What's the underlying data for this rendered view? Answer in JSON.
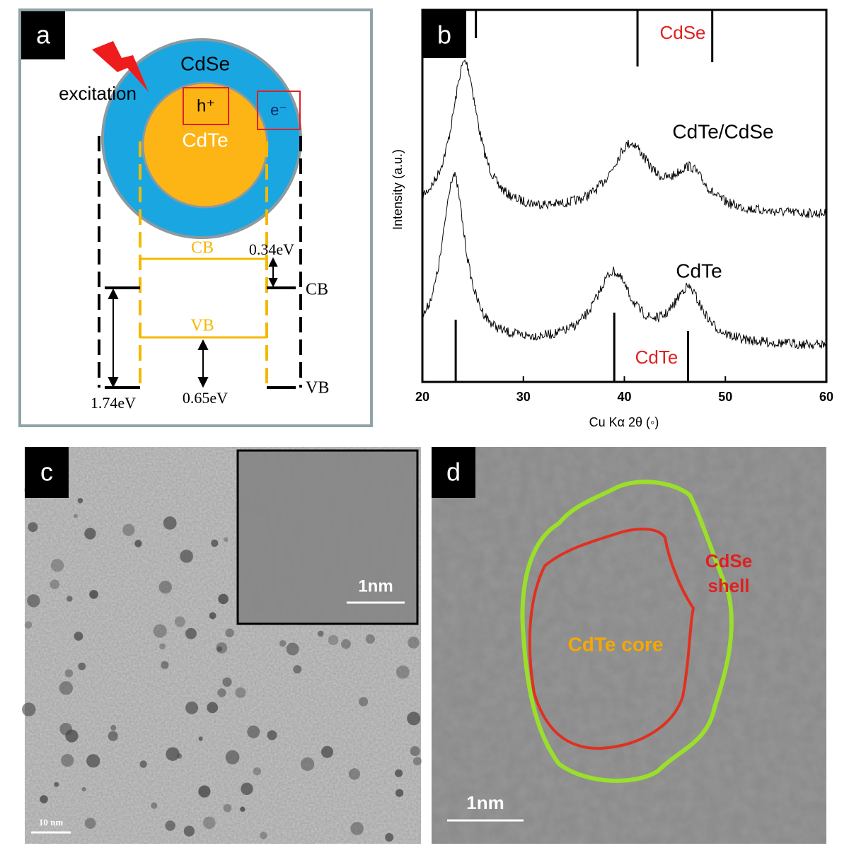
{
  "panel_a": {
    "label": "a",
    "shell": "CdSe",
    "core": "CdTe",
    "excitation": "excitation",
    "hole": "h⁺",
    "electron": "e⁻",
    "cb_core": "CB",
    "vb_core": "VB",
    "cb_shell": "CB",
    "vb_shell": "VB",
    "offset_cb": "0.34eV",
    "offset_vb": "0.65eV",
    "gap": "1.74eV"
  },
  "panel_b": {
    "label": "b",
    "xlabel": "Cu Kα 2θ (◦)",
    "ylabel": "Intensity (a.u.)",
    "xlim": [
      20,
      60
    ],
    "xticks": [
      20,
      30,
      40,
      50,
      60
    ],
    "curve_labels": [
      "CdTe/CdSe",
      "CdTe"
    ],
    "reference_labels": [
      "CdSe",
      "CdTe"
    ],
    "cdse_peaks": [
      25.3,
      41.3,
      48.7
    ],
    "cdte_peaks": [
      23.3,
      39,
      46.3
    ]
  },
  "panel_c": {
    "label": "c",
    "scale_bar": "10 nm",
    "inset_scale_bar": "1nm"
  },
  "panel_d": {
    "label": "d",
    "shell_label": [
      "CdSe",
      "shell"
    ],
    "core_label": "CdTe core",
    "scale_bar": "1nm"
  }
}
